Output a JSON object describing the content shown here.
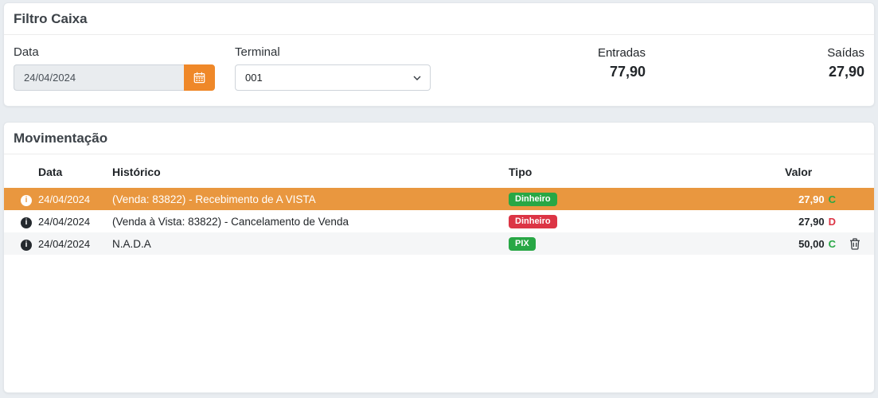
{
  "filter_panel": {
    "title": "Filtro Caixa",
    "date_field": {
      "label": "Data",
      "value": "24/04/2024"
    },
    "terminal_field": {
      "label": "Terminal",
      "value": "001"
    },
    "totals": {
      "entradas_label": "Entradas",
      "entradas_value": "77,90",
      "saidas_label": "Saídas",
      "saidas_value": "27,90"
    }
  },
  "movement_panel": {
    "title": "Movimentação",
    "columns": {
      "data": "Data",
      "historico": "Histórico",
      "tipo": "Tipo",
      "valor": "Valor"
    },
    "info_icon_glyph": "i",
    "rows": [
      {
        "date": "24/04/2024",
        "history": "(Venda: 83822) - Recebimento de A VISTA",
        "type_label": "Dinheiro",
        "type_color": "#28a745",
        "value": "27,90",
        "dc": "C",
        "dc_color": "#28a745",
        "highlighted": true,
        "deletable": false
      },
      {
        "date": "24/04/2024",
        "history": "(Venda à Vista: 83822) - Cancelamento de Venda",
        "type_label": "Dinheiro",
        "type_color": "#dc3545",
        "value": "27,90",
        "dc": "D",
        "dc_color": "#dc3545",
        "highlighted": false,
        "deletable": false
      },
      {
        "date": "24/04/2024",
        "history": "N.A.D.A",
        "type_label": "PIX",
        "type_color": "#28a745",
        "value": "50,00",
        "dc": "C",
        "dc_color": "#28a745",
        "highlighted": false,
        "deletable": true
      }
    ]
  },
  "colors": {
    "accent_orange": "#ef8829",
    "highlight_row_orange": "#e9973f",
    "credit_green": "#28a745",
    "debit_red": "#dc3545"
  }
}
